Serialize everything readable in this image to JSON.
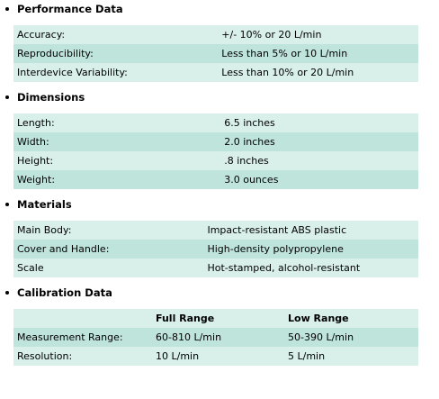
{
  "sections": [
    {
      "title": "Performance Data",
      "rows": [
        [
          "Accuracy:",
          "+/- 10% or 20 L/min"
        ],
        [
          "Reproducibility:",
          "Less than 5% or 10 L/min"
        ],
        [
          "Interdevice Variability:",
          "Less than 10% or 20 L/min"
        ]
      ]
    },
    {
      "title": "Dimensions",
      "rows": [
        [
          "Length:",
          "6.5 inches"
        ],
        [
          "Width:",
          "2.0 inches"
        ],
        [
          "Height:",
          ".8 inches"
        ],
        [
          "Weight:",
          "3.0 ounces"
        ]
      ]
    },
    {
      "title": "Materials",
      "rows": [
        [
          "Main Body:",
          "Impact-resistant ABS plastic"
        ],
        [
          "Cover and Handle:",
          "High-density polypropylene"
        ],
        [
          "Scale",
          "Hot-stamped, alcohol-resistant"
        ]
      ]
    },
    {
      "title": "Calibration Data",
      "header": [
        "Full Range",
        "Low Range"
      ],
      "rows": [
        [
          "Measurement Range:",
          "60-810 L/min",
          "50-390 L/min"
        ],
        [
          "Resolution:",
          "10 L/min",
          "5 L/min"
        ]
      ]
    }
  ]
}
